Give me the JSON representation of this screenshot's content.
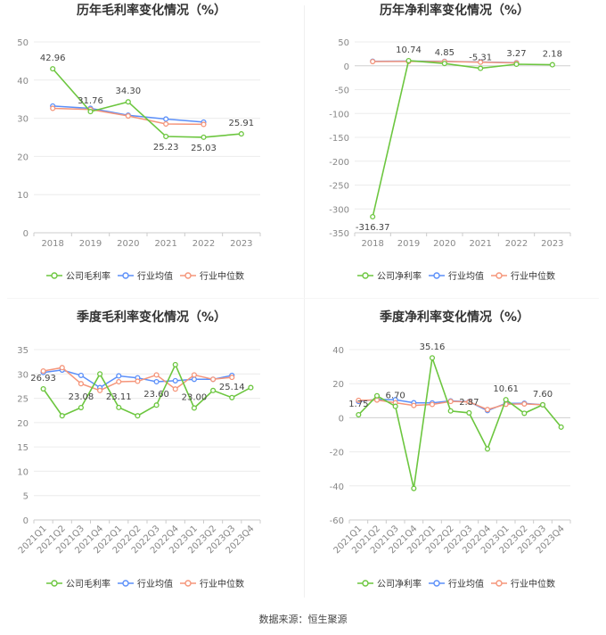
{
  "page": {
    "source_note": "数据来源：恒生聚源"
  },
  "charts": [
    {
      "title": "历年毛利率变化情况（%）",
      "categories": [
        "2018",
        "2019",
        "2020",
        "2021",
        "2022",
        "2023"
      ],
      "ylim": [
        0,
        50
      ],
      "yticks": [
        0,
        10,
        20,
        30,
        40,
        50
      ],
      "label_for": "公司毛利率",
      "legend": [
        "公司毛利率",
        "行业均值",
        "行业中位数"
      ]
    },
    {
      "title": "历年净利率变化情况（%）",
      "categories": [
        "2018",
        "2019",
        "2020",
        "2021",
        "2022",
        "2023"
      ],
      "ylim": [
        -350,
        50
      ],
      "yticks": [
        -350,
        -300,
        -250,
        -200,
        -150,
        -100,
        -50,
        0,
        50
      ],
      "label_for": "公司净利率",
      "legend": [
        "公司净利率",
        "行业均值",
        "行业中位数"
      ]
    },
    {
      "title": "季度毛利率变化情况（%）",
      "categories": [
        "2021Q1",
        "2021Q2",
        "2021Q3",
        "2021Q4",
        "2022Q1",
        "2022Q2",
        "2022Q3",
        "2022Q4",
        "2023Q1",
        "2023Q2",
        "2023Q3",
        "2023Q4"
      ],
      "ylim": [
        0,
        35
      ],
      "yticks": [
        0,
        5,
        10,
        15,
        20,
        25,
        30,
        35
      ],
      "label_for": "公司毛利率",
      "legend": [
        "公司毛利率",
        "行业均值",
        "行业中位数"
      ]
    },
    {
      "title": "季度净利率变化情况（%）",
      "categories": [
        "2021Q1",
        "2021Q2",
        "2021Q3",
        "2021Q4",
        "2022Q1",
        "2022Q2",
        "2022Q3",
        "2022Q4",
        "2023Q1",
        "2023Q2",
        "2023Q3",
        "2023Q4"
      ],
      "ylim": [
        -60,
        40
      ],
      "yticks": [
        -60,
        -40,
        -20,
        0,
        20,
        40
      ],
      "label_for": "公司净利率",
      "legend": [
        "公司净利率",
        "行业均值",
        "行业中位数"
      ]
    }
  ],
  "chart_data": [
    {
      "type": "line",
      "title": "历年毛利率变化情况（%）",
      "x": [
        "2018",
        "2019",
        "2020",
        "2021",
        "2022",
        "2023"
      ],
      "ylim": [
        0,
        50
      ],
      "grid": true,
      "legend_position": "bottom",
      "series": [
        {
          "name": "公司毛利率",
          "color": "#6cc63f",
          "values": [
            42.96,
            31.76,
            34.3,
            25.23,
            25.03,
            25.91
          ],
          "labels": [
            "42.96",
            "31.76",
            "34.30",
            "25.23",
            "25.03",
            "25.91"
          ]
        },
        {
          "name": "行业均值",
          "color": "#5b8ff9",
          "values": [
            33.2,
            32.6,
            30.8,
            29.8,
            29.0,
            null
          ]
        },
        {
          "name": "行业中位数",
          "color": "#f5957a",
          "values": [
            32.6,
            32.3,
            30.6,
            28.5,
            28.4,
            null
          ]
        }
      ]
    },
    {
      "type": "line",
      "title": "历年净利率变化情况（%）",
      "x": [
        "2018",
        "2019",
        "2020",
        "2021",
        "2022",
        "2023"
      ],
      "ylim": [
        -350,
        50
      ],
      "grid": true,
      "legend_position": "bottom",
      "series": [
        {
          "name": "公司净利率",
          "color": "#6cc63f",
          "values": [
            -316.37,
            10.74,
            4.85,
            -5.31,
            3.27,
            2.18
          ],
          "labels": [
            "-316.37",
            "10.74",
            "4.85",
            "-5.31",
            "3.27",
            "2.18"
          ]
        },
        {
          "name": "行业均值",
          "color": "#5b8ff9",
          "values": [
            9.5,
            9.8,
            9.2,
            8.0,
            6.5,
            null
          ]
        },
        {
          "name": "行业中位数",
          "color": "#f5957a",
          "values": [
            8.8,
            9.0,
            8.8,
            7.5,
            6.0,
            null
          ]
        }
      ]
    },
    {
      "type": "line",
      "title": "季度毛利率变化情况（%）",
      "x": [
        "2021Q1",
        "2021Q2",
        "2021Q3",
        "2021Q4",
        "2022Q1",
        "2022Q2",
        "2022Q3",
        "2022Q4",
        "2023Q1",
        "2023Q2",
        "2023Q3",
        "2023Q4"
      ],
      "ylim": [
        0,
        35
      ],
      "grid": true,
      "legend_position": "bottom",
      "series": [
        {
          "name": "公司毛利率",
          "color": "#6cc63f",
          "values": [
            26.93,
            21.4,
            23.08,
            30.0,
            23.11,
            21.4,
            23.6,
            31.9,
            23.0,
            26.6,
            25.14,
            27.2
          ],
          "labels": [
            "26.93",
            "",
            "23.08",
            "",
            "23.11",
            "",
            "23.60",
            "",
            "23.00",
            "",
            "25.14",
            ""
          ]
        },
        {
          "name": "行业均值",
          "color": "#5b8ff9",
          "values": [
            30.3,
            30.8,
            29.7,
            27.2,
            29.6,
            29.2,
            28.4,
            28.6,
            28.9,
            28.9,
            29.7,
            null
          ]
        },
        {
          "name": "行业中位数",
          "color": "#f5957a",
          "values": [
            30.6,
            31.3,
            28.0,
            26.6,
            28.4,
            28.5,
            29.8,
            26.9,
            29.8,
            28.9,
            29.3,
            null
          ]
        }
      ]
    },
    {
      "type": "line",
      "title": "季度净利率变化情况（%）",
      "x": [
        "2021Q1",
        "2021Q2",
        "2021Q3",
        "2021Q4",
        "2022Q1",
        "2022Q2",
        "2022Q3",
        "2022Q4",
        "2023Q1",
        "2023Q2",
        "2023Q3",
        "2023Q4"
      ],
      "ylim": [
        -60,
        40
      ],
      "grid": true,
      "legend_position": "bottom",
      "series": [
        {
          "name": "公司净利率",
          "color": "#6cc63f",
          "values": [
            1.75,
            12.9,
            6.7,
            -41.5,
            35.16,
            4.0,
            2.87,
            -18.3,
            10.61,
            2.6,
            7.6,
            -5.5
          ],
          "labels": [
            "1.75",
            "",
            "6.70",
            "",
            "35.16",
            "",
            "2.87",
            "",
            "10.61",
            "",
            "7.60",
            ""
          ]
        },
        {
          "name": "行业均值",
          "color": "#5b8ff9",
          "values": [
            9.6,
            10.8,
            10.6,
            8.8,
            8.7,
            9.9,
            9.4,
            4.2,
            8.5,
            8.5,
            7.6,
            null
          ]
        },
        {
          "name": "行业中位数",
          "color": "#f5957a",
          "values": [
            10.2,
            10.4,
            8.8,
            7.2,
            7.8,
            9.6,
            9.3,
            4.8,
            7.9,
            8.1,
            7.6,
            null
          ]
        }
      ]
    }
  ]
}
